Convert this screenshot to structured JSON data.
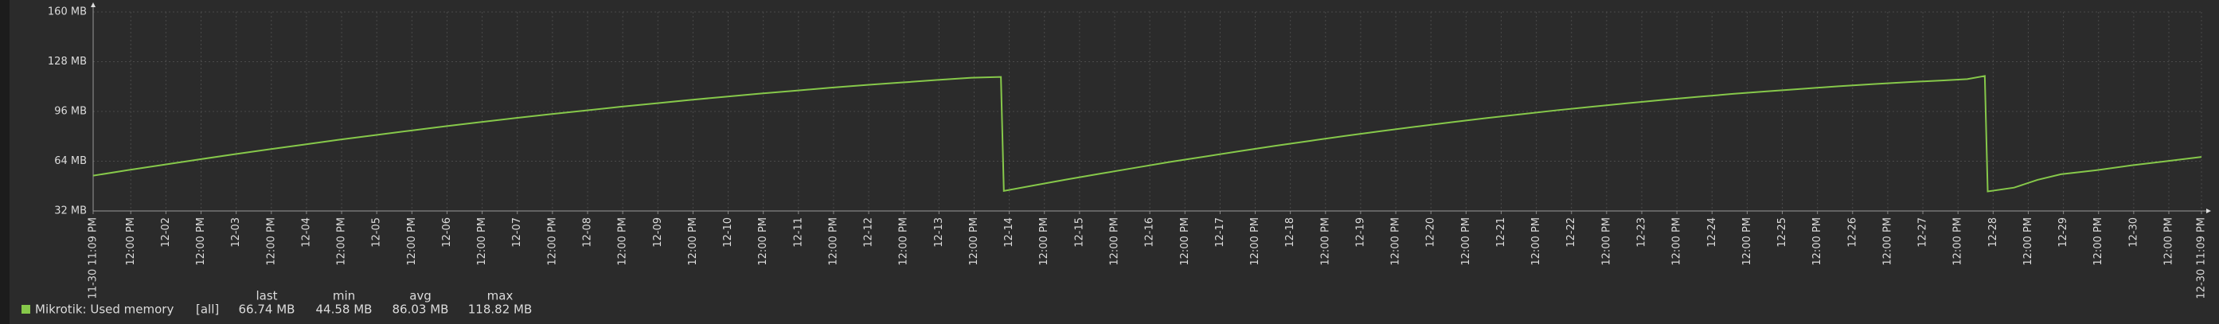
{
  "chart_data": {
    "type": "line",
    "x": [
      0,
      12,
      24,
      36,
      48,
      60,
      72,
      84,
      96,
      108,
      120,
      132,
      144,
      156,
      168,
      180,
      192,
      204,
      216,
      228,
      240,
      252,
      264,
      276,
      288,
      300,
      310,
      311,
      320,
      332,
      344,
      356,
      368,
      380,
      392,
      404,
      416,
      428,
      440,
      452,
      464,
      476,
      488,
      500,
      512,
      524,
      536,
      548,
      560,
      572,
      584,
      596,
      608,
      620,
      632,
      640,
      646,
      647,
      656,
      664,
      672,
      684,
      696,
      708,
      720
    ],
    "series": [
      {
        "name": "Mikrotik: Used memory",
        "color": "#86c84a",
        "values": [
          54.7,
          58.3,
          61.7,
          65.1,
          68.4,
          71.6,
          74.7,
          77.8,
          80.7,
          83.6,
          86.4,
          89.1,
          91.7,
          94.2,
          96.6,
          99.0,
          101.2,
          103.4,
          105.5,
          107.5,
          109.4,
          111.3,
          113.0,
          114.6,
          116.2,
          117.7,
          118.2,
          44.9,
          48.0,
          52.1,
          56.0,
          59.8,
          63.6,
          67.1,
          70.6,
          74.0,
          77.2,
          80.4,
          83.4,
          86.3,
          89.1,
          91.8,
          94.3,
          96.8,
          99.1,
          101.3,
          103.4,
          105.4,
          107.3,
          109.0,
          110.6,
          112.2,
          113.6,
          114.9,
          116.0,
          116.8,
          118.82,
          44.58,
          47.0,
          52.0,
          55.6,
          58.2,
          61.3,
          64.0,
          66.74
        ]
      }
    ],
    "xlim": [
      0,
      720
    ],
    "xticks": [
      {
        "value": 0,
        "label": "11-30 11:09 PM"
      },
      {
        "value": 12.85,
        "label": "12:00 PM"
      },
      {
        "value": 24.85,
        "label": "12-02"
      },
      {
        "value": 36.85,
        "label": "12:00 PM"
      },
      {
        "value": 48.85,
        "label": "12-03"
      },
      {
        "value": 60.85,
        "label": "12:00 PM"
      },
      {
        "value": 72.85,
        "label": "12-04"
      },
      {
        "value": 84.85,
        "label": "12:00 PM"
      },
      {
        "value": 96.85,
        "label": "12-05"
      },
      {
        "value": 108.85,
        "label": "12:00 PM"
      },
      {
        "value": 120.85,
        "label": "12-06"
      },
      {
        "value": 132.85,
        "label": "12:00 PM"
      },
      {
        "value": 144.85,
        "label": "12-07"
      },
      {
        "value": 156.85,
        "label": "12:00 PM"
      },
      {
        "value": 168.85,
        "label": "12-08"
      },
      {
        "value": 180.85,
        "label": "12:00 PM"
      },
      {
        "value": 192.85,
        "label": "12-09"
      },
      {
        "value": 204.85,
        "label": "12:00 PM"
      },
      {
        "value": 216.85,
        "label": "12-10"
      },
      {
        "value": 228.85,
        "label": "12:00 PM"
      },
      {
        "value": 240.85,
        "label": "12-11"
      },
      {
        "value": 252.85,
        "label": "12:00 PM"
      },
      {
        "value": 264.85,
        "label": "12-12"
      },
      {
        "value": 276.85,
        "label": "12:00 PM"
      },
      {
        "value": 288.85,
        "label": "12-13"
      },
      {
        "value": 300.85,
        "label": "12:00 PM"
      },
      {
        "value": 312.85,
        "label": "12-14"
      },
      {
        "value": 324.85,
        "label": "12:00 PM"
      },
      {
        "value": 336.85,
        "label": "12-15"
      },
      {
        "value": 348.85,
        "label": "12:00 PM"
      },
      {
        "value": 360.85,
        "label": "12-16"
      },
      {
        "value": 372.85,
        "label": "12:00 PM"
      },
      {
        "value": 384.85,
        "label": "12-17"
      },
      {
        "value": 396.85,
        "label": "12:00 PM"
      },
      {
        "value": 408.85,
        "label": "12-18"
      },
      {
        "value": 420.85,
        "label": "12:00 PM"
      },
      {
        "value": 432.85,
        "label": "12-19"
      },
      {
        "value": 444.85,
        "label": "12:00 PM"
      },
      {
        "value": 456.85,
        "label": "12-20"
      },
      {
        "value": 468.85,
        "label": "12:00 PM"
      },
      {
        "value": 480.85,
        "label": "12-21"
      },
      {
        "value": 492.85,
        "label": "12:00 PM"
      },
      {
        "value": 504.85,
        "label": "12-22"
      },
      {
        "value": 516.85,
        "label": "12:00 PM"
      },
      {
        "value": 528.85,
        "label": "12-23"
      },
      {
        "value": 540.85,
        "label": "12:00 PM"
      },
      {
        "value": 552.85,
        "label": "12-24"
      },
      {
        "value": 564.85,
        "label": "12:00 PM"
      },
      {
        "value": 576.85,
        "label": "12-25"
      },
      {
        "value": 588.85,
        "label": "12:00 PM"
      },
      {
        "value": 600.85,
        "label": "12-26"
      },
      {
        "value": 612.85,
        "label": "12:00 PM"
      },
      {
        "value": 624.85,
        "label": "12-27"
      },
      {
        "value": 636.85,
        "label": "12:00 PM"
      },
      {
        "value": 648.85,
        "label": "12-28"
      },
      {
        "value": 660.85,
        "label": "12:00 PM"
      },
      {
        "value": 672.85,
        "label": "12-29"
      },
      {
        "value": 684.85,
        "label": "12:00 PM"
      },
      {
        "value": 696.85,
        "label": "12-30"
      },
      {
        "value": 708.85,
        "label": "12:00 PM"
      },
      {
        "value": 720,
        "label": "12-30 11:09 PM"
      }
    ],
    "xtick_color": "#dcdcdc",
    "xtick_date_color": "#e0604f",
    "ylim": [
      32,
      160
    ],
    "yticks": [
      {
        "value": 32,
        "label": "32 MB"
      },
      {
        "value": 64,
        "label": "64 MB"
      },
      {
        "value": 96,
        "label": "96 MB"
      },
      {
        "value": 128,
        "label": "128 MB"
      },
      {
        "value": 160,
        "label": "160 MB"
      }
    ],
    "grid": true,
    "legend": {
      "scope": "[all]",
      "columns": [
        "last",
        "min",
        "avg",
        "max"
      ],
      "cells": [
        "66.74 MB",
        "44.58 MB",
        "86.03 MB",
        "118.82 MB"
      ]
    }
  }
}
